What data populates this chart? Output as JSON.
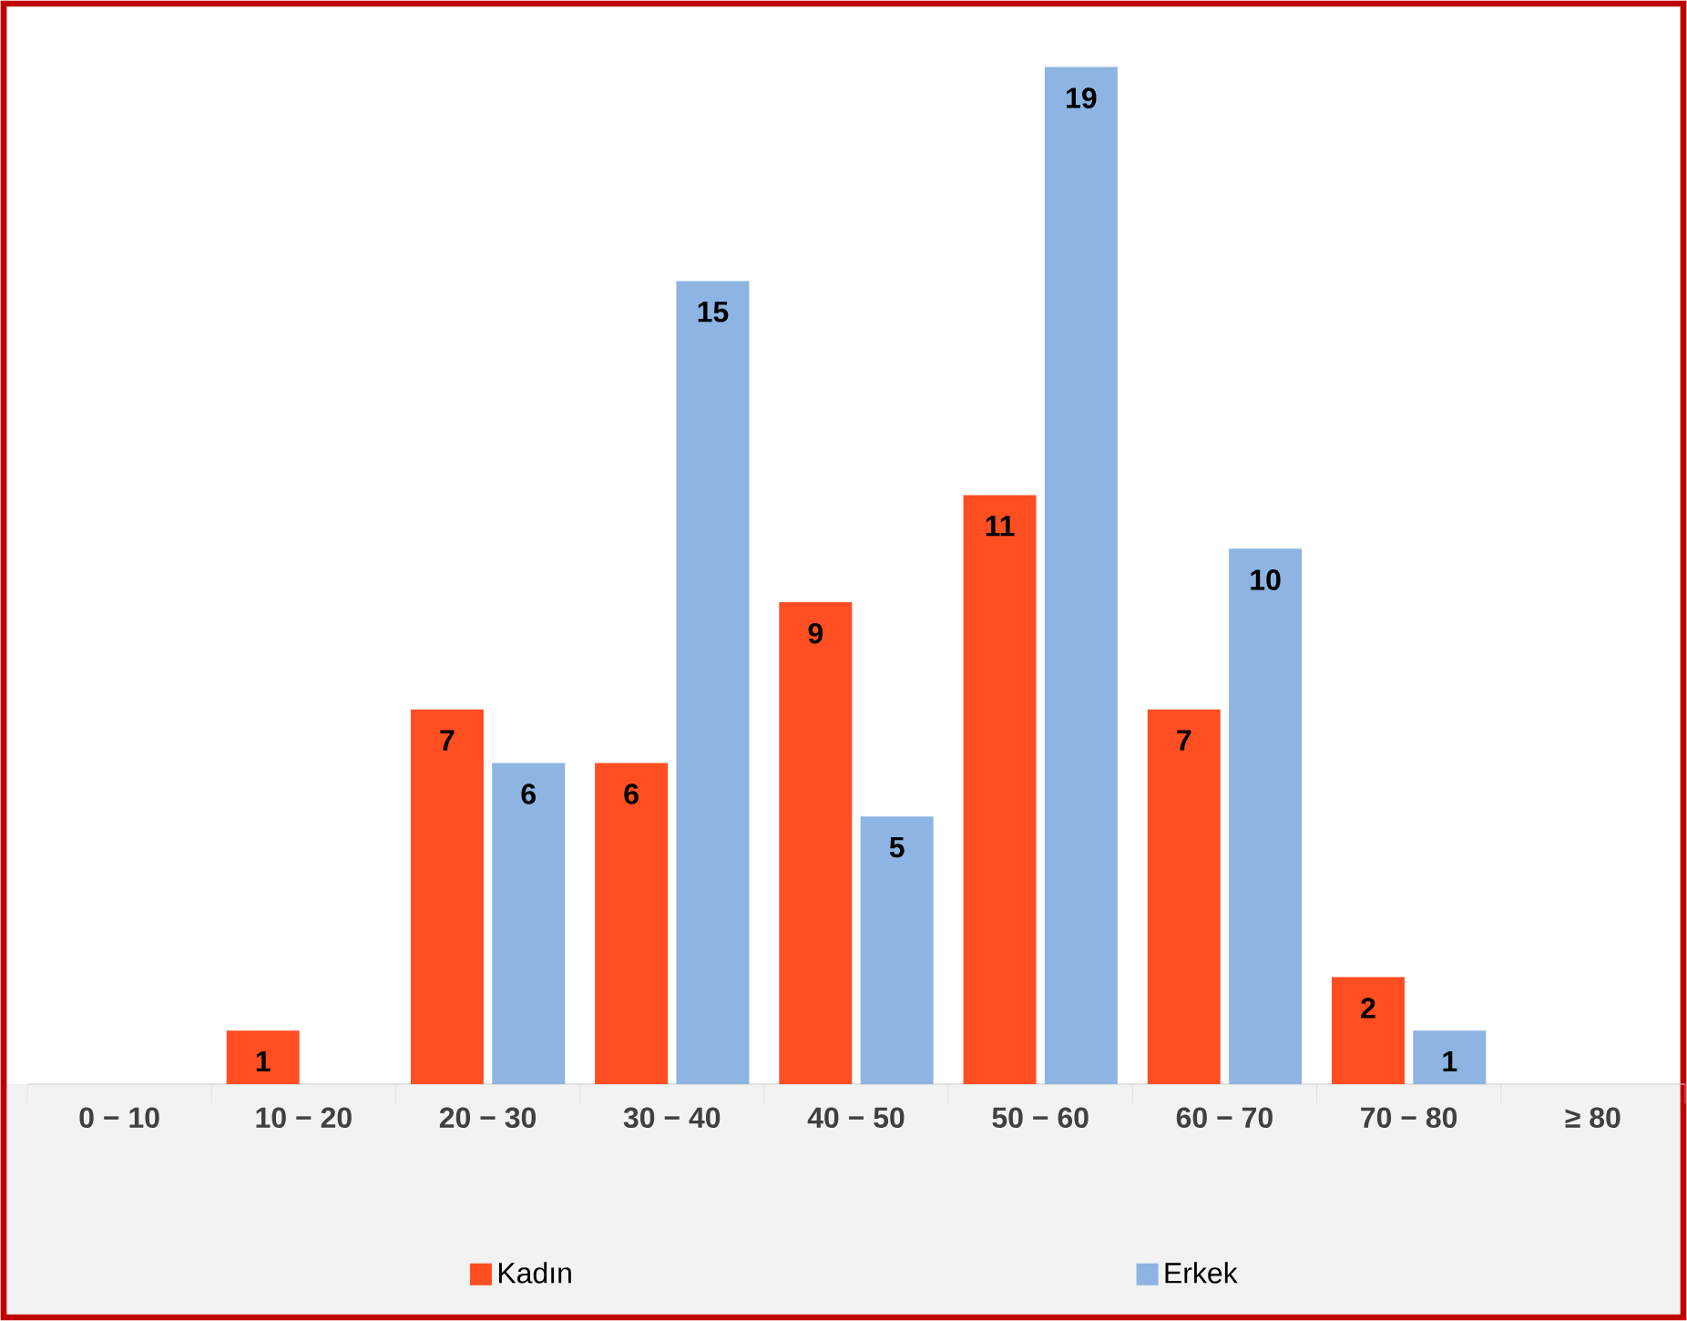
{
  "chart_data": {
    "type": "bar",
    "categories": [
      "0 − 10",
      "10 − 20",
      "20 − 30",
      "30 − 40",
      "40 − 50",
      "50 − 60",
      "60 − 70",
      "70 − 80",
      "≥ 80"
    ],
    "series": [
      {
        "name": "Kadın",
        "color": "#ff4e22",
        "values": [
          null,
          1,
          7,
          6,
          9,
          11,
          7,
          2,
          null
        ]
      },
      {
        "name": "Erkek",
        "color": "#8db4e2",
        "values": [
          null,
          null,
          6,
          15,
          5,
          19,
          10,
          1,
          null
        ]
      }
    ],
    "data_labels": true,
    "legend": "bottom"
  }
}
